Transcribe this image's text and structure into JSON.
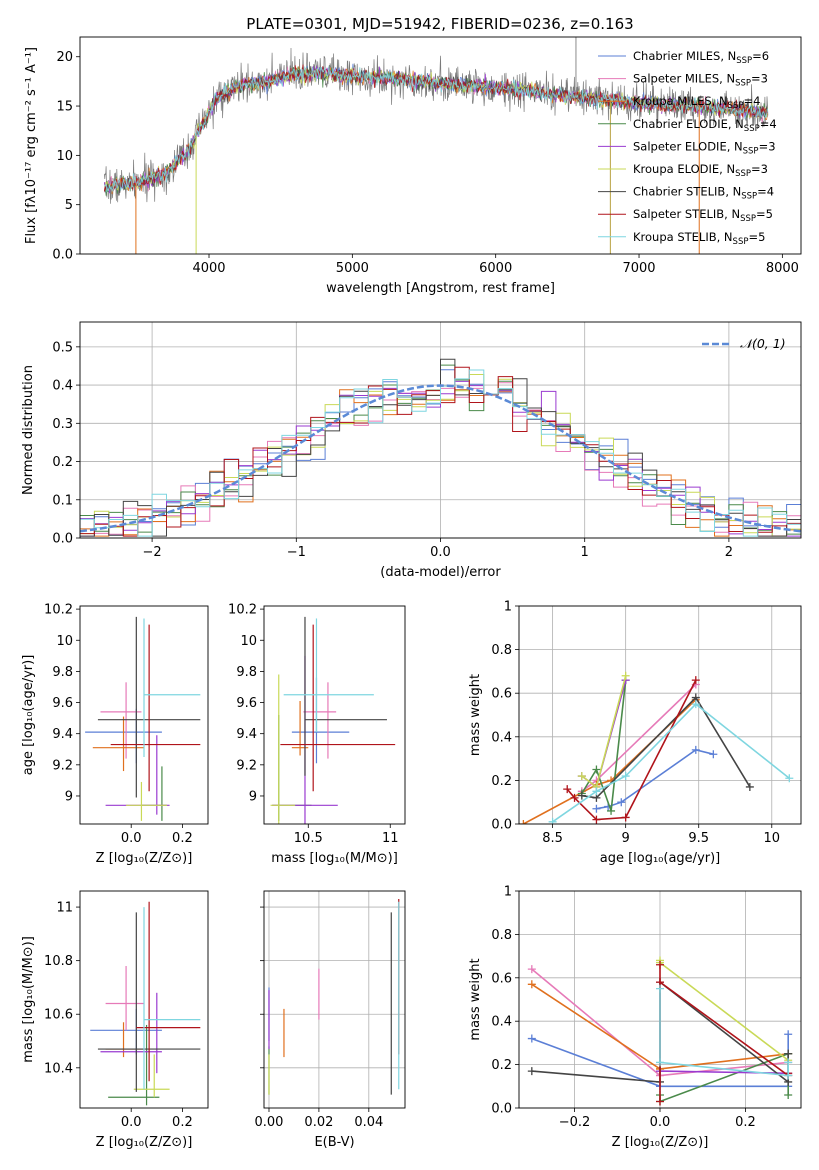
{
  "figure": {
    "title": "PLATE=0301, MJD=51942, FIBERID=0236, z=0.163"
  },
  "models": [
    {
      "label": "Chabrier MILES, N",
      "nssp": "=6",
      "color": "#5b7fd6"
    },
    {
      "label": "Salpeter MILES, N",
      "nssp": "=3",
      "color": "#e67ab8"
    },
    {
      "label": "Kroupa MILES, N",
      "nssp": "=4",
      "color": "#e0701e"
    },
    {
      "label": "Chabrier ELODIE, N",
      "nssp": "=4",
      "color": "#4a8a4a"
    },
    {
      "label": "Salpeter ELODIE, N",
      "nssp": "=3",
      "color": "#9a3bd0"
    },
    {
      "label": "Kroupa ELODIE, N",
      "nssp": "=3",
      "color": "#c9d957"
    },
    {
      "label": "Chabrier STELIB, N",
      "nssp": "=4",
      "color": "#444444"
    },
    {
      "label": "Salpeter STELIB, N",
      "nssp": "=5",
      "color": "#b0141b"
    },
    {
      "label": "Kroupa STELIB, N",
      "nssp": "=5",
      "color": "#7fd6e0"
    }
  ],
  "ssp_subscript": "SSP",
  "chart_data": [
    {
      "id": "spectrum",
      "type": "line",
      "xlabel": "wavelength [Angstrom, rest frame]",
      "ylabel": "Flux [fλ10⁻¹⁷ erg cm⁻² s⁻¹ A⁻¹]",
      "xlim": [
        3100,
        8130
      ],
      "ylim": [
        0,
        22
      ],
      "xticks": [
        4000,
        5000,
        6000,
        7000,
        8000
      ],
      "yticks": [
        0,
        5,
        10,
        15,
        20
      ],
      "continuum_nodes": [
        [
          3270,
          6.8
        ],
        [
          3500,
          7.2
        ],
        [
          3700,
          8.2
        ],
        [
          3850,
          10.5
        ],
        [
          3950,
          13.0
        ],
        [
          4050,
          15.8
        ],
        [
          4200,
          17.0
        ],
        [
          4400,
          17.5
        ],
        [
          4600,
          18.2
        ],
        [
          4800,
          18.3
        ],
        [
          5000,
          18.0
        ],
        [
          5300,
          17.8
        ],
        [
          5600,
          17.3
        ],
        [
          5900,
          17.0
        ],
        [
          6200,
          16.6
        ],
        [
          6500,
          16.0
        ],
        [
          6800,
          15.6
        ],
        [
          7100,
          15.2
        ],
        [
          7400,
          15.0
        ],
        [
          7700,
          14.6
        ],
        [
          7900,
          14.3
        ]
      ],
      "data_range": [
        3270,
        7900
      ],
      "spikes": [
        [
          3490,
          0
        ],
        [
          3910,
          0
        ],
        [
          6800,
          0
        ],
        [
          7420,
          0
        ],
        [
          6560,
          23
        ]
      ]
    },
    {
      "id": "residuals",
      "type": "histogram",
      "xlabel": "(data-model)/error",
      "ylabel": "Normed distribution",
      "xlim": [
        -2.5,
        2.5
      ],
      "ylim": [
        0,
        0.565
      ],
      "xticks": [
        -2,
        -1,
        0,
        1,
        2
      ],
      "yticks": [
        0.0,
        0.1,
        0.2,
        0.3,
        0.4,
        0.5
      ],
      "bins": 50,
      "reference": {
        "label": "𝒩(0, 1)",
        "mean": 0,
        "sigma": 1,
        "color": "#5b8ad6"
      },
      "grid": true
    },
    {
      "id": "age_vs_Z",
      "type": "errorbar",
      "xlabel": "Z [log₁₀(Z/Z⊙)]",
      "ylabel": "age  [log₁₀(age/yr)]",
      "xlim": [
        -0.2,
        0.3
      ],
      "ylim": [
        8.82,
        10.22
      ],
      "xticks": [
        0.0,
        0.2
      ],
      "yticks": [
        9.0,
        9.2,
        9.4,
        9.6,
        9.8,
        10.0,
        10.2
      ],
      "points": [
        {
          "x": 0.02,
          "xerr": [
            0.2,
            0.1
          ],
          "y": 9.41,
          "yerr": [
            0.2,
            0.15
          ]
        },
        {
          "x": -0.02,
          "xerr": [
            0.1,
            0.06
          ],
          "y": 9.54,
          "yerr": [
            0.3,
            0.19
          ]
        },
        {
          "x": -0.03,
          "xerr": [
            0.12,
            0.08
          ],
          "y": 9.31,
          "yerr": [
            0.15,
            0.2
          ]
        },
        {
          "x": 0.12,
          "xerr": [
            0.08,
            0.02
          ],
          "y": 8.94,
          "yerr": [
            0.1,
            0.25
          ]
        },
        {
          "x": 0.1,
          "xerr": [
            0.2,
            0.05
          ],
          "y": 8.94,
          "yerr": [
            0.06,
            0.45
          ]
        },
        {
          "x": 0.04,
          "xerr": [
            0.06,
            0.1
          ],
          "y": 8.94,
          "yerr": [
            0.1,
            0.15
          ]
        },
        {
          "x": 0.02,
          "xerr": [
            0.15,
            0.25
          ],
          "y": 9.49,
          "yerr": [
            0.5,
            0.66
          ]
        },
        {
          "x": 0.07,
          "xerr": [
            0.15,
            0.2
          ],
          "y": 9.33,
          "yerr": [
            0.3,
            0.77
          ]
        },
        {
          "x": 0.05,
          "xerr": [
            0.0,
            0.22
          ],
          "y": 9.65,
          "yerr": [
            0.4,
            0.49
          ]
        }
      ]
    },
    {
      "id": "age_vs_mass",
      "type": "errorbar",
      "xlabel": "mass [log₁₀(M/M⊙)]",
      "ylabel": "",
      "xlim": [
        10.23,
        11.09
      ],
      "ylim": [
        8.82,
        10.22
      ],
      "xticks": [
        10.5,
        11.0
      ],
      "yticks": [
        9.0,
        9.2,
        9.4,
        9.6,
        9.8,
        10.0,
        10.2
      ],
      "points": [
        {
          "x": 10.55,
          "xerr": [
            0.15,
            0.2
          ],
          "y": 9.41,
          "yerr": [
            0.2,
            0.35
          ]
        },
        {
          "x": 10.62,
          "xerr": [
            0.15,
            0.05
          ],
          "y": 9.54,
          "yerr": [
            0.3,
            0.19
          ]
        },
        {
          "x": 10.45,
          "xerr": [
            0.05,
            0.05
          ],
          "y": 9.31,
          "yerr": [
            0.05,
            0.3
          ]
        },
        {
          "x": 10.32,
          "xerr": [
            0.04,
            0.2
          ],
          "y": 8.94,
          "yerr": [
            0.1,
            0.58
          ]
        },
        {
          "x": 10.48,
          "xerr": [
            0.2,
            0.2
          ],
          "y": 8.94,
          "yerr": [
            0.3,
            0.96
          ]
        },
        {
          "x": 10.32,
          "xerr": [
            0.05,
            0.1
          ],
          "y": 8.94,
          "yerr": [
            0.25,
            0.84
          ]
        },
        {
          "x": 10.48,
          "xerr": [
            0.0,
            0.5
          ],
          "y": 9.49,
          "yerr": [
            0.36,
            0.66
          ]
        },
        {
          "x": 10.53,
          "xerr": [
            0.2,
            0.5
          ],
          "y": 9.33,
          "yerr": [
            0.3,
            0.77
          ]
        },
        {
          "x": 10.55,
          "xerr": [
            0.2,
            0.35
          ],
          "y": 9.65,
          "yerr": [
            0.24,
            0.49
          ]
        }
      ]
    },
    {
      "id": "weight_vs_age",
      "type": "line",
      "xlabel": "age  [log₁₀(age/yr)]",
      "ylabel": "mass weight",
      "xlim": [
        8.27,
        10.2
      ],
      "ylim": [
        0,
        1
      ],
      "xticks": [
        8.5,
        9.0,
        9.5,
        10.0
      ],
      "yticks": [
        0.0,
        0.2,
        0.4,
        0.6,
        0.8,
        1.0
      ],
      "grid": true,
      "series": [
        {
          "x": [
            8.8,
            8.88,
            8.97,
            9.48,
            9.6
          ],
          "y": [
            0.07,
            0.08,
            0.1,
            0.34,
            0.32
          ]
        },
        {
          "x": [
            8.7,
            8.8,
            9.48
          ],
          "y": [
            0.15,
            0.2,
            0.64
          ]
        },
        {
          "x": [
            8.3,
            8.8,
            8.9,
            9.48
          ],
          "y": [
            0.0,
            0.18,
            0.2,
            0.57
          ]
        },
        {
          "x": [
            8.7,
            8.8,
            8.9,
            9.0
          ],
          "y": [
            0.14,
            0.25,
            0.06,
            0.66
          ]
        },
        {
          "x": [
            8.7,
            8.8,
            9.0
          ],
          "y": [
            0.22,
            0.17,
            0.66
          ]
        },
        {
          "x": [
            8.7,
            8.8,
            9.0
          ],
          "y": [
            0.22,
            0.17,
            0.68
          ]
        },
        {
          "x": [
            8.7,
            8.8,
            9.48,
            9.85
          ],
          "y": [
            0.13,
            0.12,
            0.58,
            0.17
          ]
        },
        {
          "x": [
            8.6,
            8.65,
            8.8,
            9.0,
            9.48
          ],
          "y": [
            0.16,
            0.12,
            0.02,
            0.03,
            0.66
          ]
        },
        {
          "x": [
            8.5,
            8.8,
            9.0,
            9.48,
            10.12
          ],
          "y": [
            0.01,
            0.15,
            0.22,
            0.55,
            0.21
          ]
        }
      ]
    },
    {
      "id": "mass_vs_Z",
      "type": "errorbar",
      "xlabel": "Z [log₁₀(Z/Z⊙)]",
      "ylabel": "mass [log₁₀(M/M⊙)]",
      "xlim": [
        -0.2,
        0.3
      ],
      "ylim": [
        10.25,
        11.06
      ],
      "xticks": [
        0.0,
        0.2
      ],
      "yticks": [
        10.4,
        10.6,
        10.8,
        11.0
      ],
      "points": [
        {
          "x": 0.02,
          "xerr": [
            0.18,
            0.1
          ],
          "y": 10.54,
          "yerr": [
            0.09,
            0.08
          ]
        },
        {
          "x": -0.02,
          "xerr": [
            0.08,
            0.07
          ],
          "y": 10.64,
          "yerr": [
            0.1,
            0.14
          ]
        },
        {
          "x": -0.03,
          "xerr": [
            0.07,
            0.08
          ],
          "y": 10.47,
          "yerr": [
            0.03,
            0.1
          ]
        },
        {
          "x": 0.06,
          "xerr": [
            0.15,
            0.05
          ],
          "y": 10.29,
          "yerr": [
            0.03,
            0.27
          ]
        },
        {
          "x": 0.1,
          "xerr": [
            0.22,
            0.02
          ],
          "y": 10.46,
          "yerr": [
            0.08,
            0.22
          ]
        },
        {
          "x": 0.09,
          "xerr": [
            0.08,
            0.06
          ],
          "y": 10.32,
          "yerr": [
            0.03,
            0.13
          ]
        },
        {
          "x": 0.02,
          "xerr": [
            0.15,
            0.25
          ],
          "y": 10.47,
          "yerr": [
            0.16,
            0.51
          ]
        },
        {
          "x": 0.07,
          "xerr": [
            0.05,
            0.2
          ],
          "y": 10.55,
          "yerr": [
            0.2,
            0.47
          ]
        },
        {
          "x": 0.05,
          "xerr": [
            0.0,
            0.22
          ],
          "y": 10.58,
          "yerr": [
            0.26,
            0.42
          ]
        }
      ]
    },
    {
      "id": "mass_vs_ebv",
      "type": "errorbar",
      "xlabel": "E(B-V)",
      "ylabel": "",
      "xlim": [
        -0.002,
        0.0545
      ],
      "ylim": [
        10.25,
        11.06
      ],
      "xticks": [
        0.0,
        0.02,
        0.04
      ],
      "xticklabels": [
        "0.00",
        "0.02",
        "0.04"
      ],
      "yticks": [
        10.4,
        10.6,
        10.8,
        11.0
      ],
      "grid": true,
      "points": [
        {
          "x": 0.0,
          "y": 10.6,
          "yerr": [
            0.1,
            0.1
          ]
        },
        {
          "x": 0.02,
          "y": 10.65,
          "yerr": [
            0.07,
            0.12
          ]
        },
        {
          "x": 0.006,
          "y": 10.54,
          "yerr": [
            0.1,
            0.08
          ]
        },
        {
          "x": 0.0,
          "y": 10.38,
          "yerr": [
            0.08,
            0.1
          ]
        },
        {
          "x": 0.0,
          "y": 10.55,
          "yerr": [
            0.08,
            0.14
          ]
        },
        {
          "x": 0.0,
          "y": 10.35,
          "yerr": [
            0.05,
            0.1
          ]
        },
        {
          "x": 0.049,
          "y": 10.65,
          "yerr": [
            0.35,
            0.33
          ]
        },
        {
          "x": 0.052,
          "y": 10.75,
          "yerr": [
            0.3,
            0.28
          ]
        },
        {
          "x": 0.052,
          "y": 10.6,
          "yerr": [
            0.28,
            0.42
          ]
        }
      ]
    },
    {
      "id": "weight_vs_Z",
      "type": "line",
      "xlabel": "Z [log₁₀(Z/Z⊙)]",
      "ylabel": "mass weight",
      "xlim": [
        -0.33,
        0.33
      ],
      "ylim": [
        0,
        1
      ],
      "xticks": [
        -0.2,
        0.0,
        0.2
      ],
      "yticks": [
        0.0,
        0.2,
        0.4,
        0.6,
        0.8,
        1.0
      ],
      "grid": true,
      "series": [
        {
          "x": [
            -0.3,
            0.0,
            0.0,
            0.3,
            0.3
          ],
          "y": [
            0.32,
            0.1,
            0.1,
            0.1,
            0.34
          ]
        },
        {
          "x": [
            -0.3,
            0.0,
            0.0,
            0.3
          ],
          "y": [
            0.64,
            0.15,
            0.15,
            0.21
          ]
        },
        {
          "x": [
            -0.3,
            0.0,
            0.0,
            0.3
          ],
          "y": [
            0.57,
            0.18,
            0.18,
            0.25
          ]
        },
        {
          "x": [
            0.0,
            0.0,
            0.3,
            0.3
          ],
          "y": [
            0.06,
            0.03,
            0.25,
            0.06
          ]
        },
        {
          "x": [
            0.0,
            0.0,
            0.3
          ],
          "y": [
            0.17,
            0.17,
            0.16
          ]
        },
        {
          "x": [
            0.0,
            0.0,
            0.3
          ],
          "y": [
            0.68,
            0.67,
            0.22
          ]
        },
        {
          "x": [
            -0.3,
            0.0,
            0.0,
            0.3,
            0.3
          ],
          "y": [
            0.17,
            0.12,
            0.58,
            0.12,
            0.25
          ]
        },
        {
          "x": [
            0.0,
            0.0,
            0.0,
            0.3,
            0.3
          ],
          "y": [
            0.03,
            0.66,
            0.58,
            0.15,
            0.16
          ]
        },
        {
          "x": [
            0.0,
            0.0,
            0.3,
            0.3
          ],
          "y": [
            0.55,
            0.21,
            0.15,
            0.21
          ]
        }
      ]
    }
  ]
}
